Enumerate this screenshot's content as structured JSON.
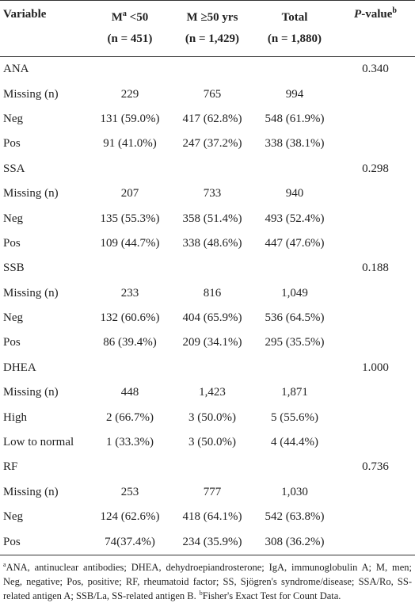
{
  "header": [
    {
      "text": "Variable"
    },
    {
      "main": "M",
      "sup": "a",
      "rest": " <50",
      "sub": "(n = 451)"
    },
    {
      "main": "M ≥50 yrs",
      "sub": "(n = 1,429)"
    },
    {
      "main": "Total",
      "sub": "(n = 1,880)"
    },
    {
      "italic": "P",
      "main": "-value",
      "sup": "b"
    }
  ],
  "table": {
    "groups": [
      {
        "name": "ANA",
        "p_value": "0.340",
        "rows": [
          [
            "Missing (n)",
            "229",
            "765",
            "994"
          ],
          [
            "Neg",
            "131 (59.0%)",
            "417 (62.8%)",
            "548 (61.9%)"
          ],
          [
            "Pos",
            "91 (41.0%)",
            "247 (37.2%)",
            "338 (38.1%)"
          ]
        ]
      },
      {
        "name": "SSA",
        "p_value": "0.298",
        "rows": [
          [
            "Missing (n)",
            "207",
            "733",
            "940"
          ],
          [
            "Neg",
            "135 (55.3%)",
            "358 (51.4%)",
            "493 (52.4%)"
          ],
          [
            "Pos",
            "109 (44.7%)",
            "338 (48.6%)",
            "447 (47.6%)"
          ]
        ]
      },
      {
        "name": "SSB",
        "p_value": "0.188",
        "rows": [
          [
            "Missing (n)",
            "233",
            "816",
            "1,049"
          ],
          [
            "Neg",
            "132 (60.6%)",
            "404 (65.9%)",
            "536 (64.5%)"
          ],
          [
            "Pos",
            "86 (39.4%)",
            "209 (34.1%)",
            "295 (35.5%)"
          ]
        ]
      },
      {
        "name": "DHEA",
        "p_value": "1.000",
        "rows": [
          [
            "Missing (n)",
            "448",
            "1,423",
            "1,871"
          ],
          [
            "High",
            "2 (66.7%)",
            "3 (50.0%)",
            "5 (55.6%)"
          ],
          [
            "Low to normal",
            "1 (33.3%)",
            "3 (50.0%)",
            "4 (44.4%)"
          ]
        ]
      },
      {
        "name": "RF",
        "p_value": "0.736",
        "rows": [
          [
            "Missing (n)",
            "253",
            "777",
            "1,030"
          ],
          [
            "Neg",
            "124 (62.6%)",
            "418 (64.1%)",
            "542 (63.8%)"
          ],
          [
            "Pos",
            "74(37.4%)",
            "234 (35.9%)",
            "308 (36.2%)"
          ]
        ]
      }
    ]
  },
  "footnote": {
    "a_mark": "a",
    "a_text": "ANA, antinuclear antibodies; DHEA, dehydroepiandrosterone; IgA, immunoglobulin A; M, men; Neg, negative; Pos, positive; RF, rheumatoid factor; SS, Sjögren's syndrome/disease; SSA/Ro, SS-related antigen A; SSB/La, SS-related antigen B.",
    "b_mark": "b",
    "b_text": "Fisher's Exact Test for Count Data."
  }
}
